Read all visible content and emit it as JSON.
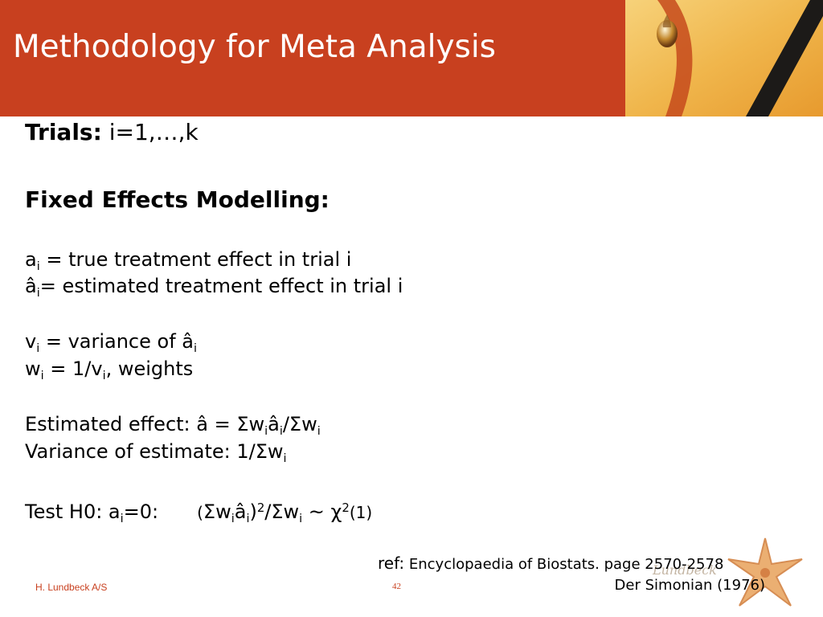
{
  "slide": {
    "title": "Methodology for Meta Analysis",
    "footer_company": "H. Lundbeck A/S",
    "page_number": "42",
    "logo_text": "Lundbeck"
  },
  "content": {
    "trials_label": "Trials:",
    "trials_value": " i=1,…,k",
    "fixed_heading": "Fixed Effects Modelling:",
    "a": "a",
    "i": "i",
    "true_effect_text": " = true treatment effect in trial i",
    "a_hat": "â",
    "estimated_effect_text": "= estimated treatment effect in trial i",
    "v": "v",
    "variance_text": " = variance of â",
    "w": "w",
    "weights_prefix": " = 1/v",
    "weights_suffix": ", weights",
    "estimated_effect_label": "Estimated effect: â = Σw",
    "slash_sigma_w": "/Σw",
    "variance_estimate_label": "Variance of estimate: 1/Σw",
    "test_label": "Test H0: a",
    "test_eq": "=0:",
    "open_paren": "(",
    "sigma_w": "Σw",
    "close_paren": ")",
    "sup2": "2",
    "tilde_chi": " ~ χ",
    "chi_df": "(1)"
  },
  "reference": {
    "label": "ref:",
    "line1": " Encyclopaedia of Biostats. page 2570-2578",
    "line2": "Der Simonian (1976)"
  }
}
